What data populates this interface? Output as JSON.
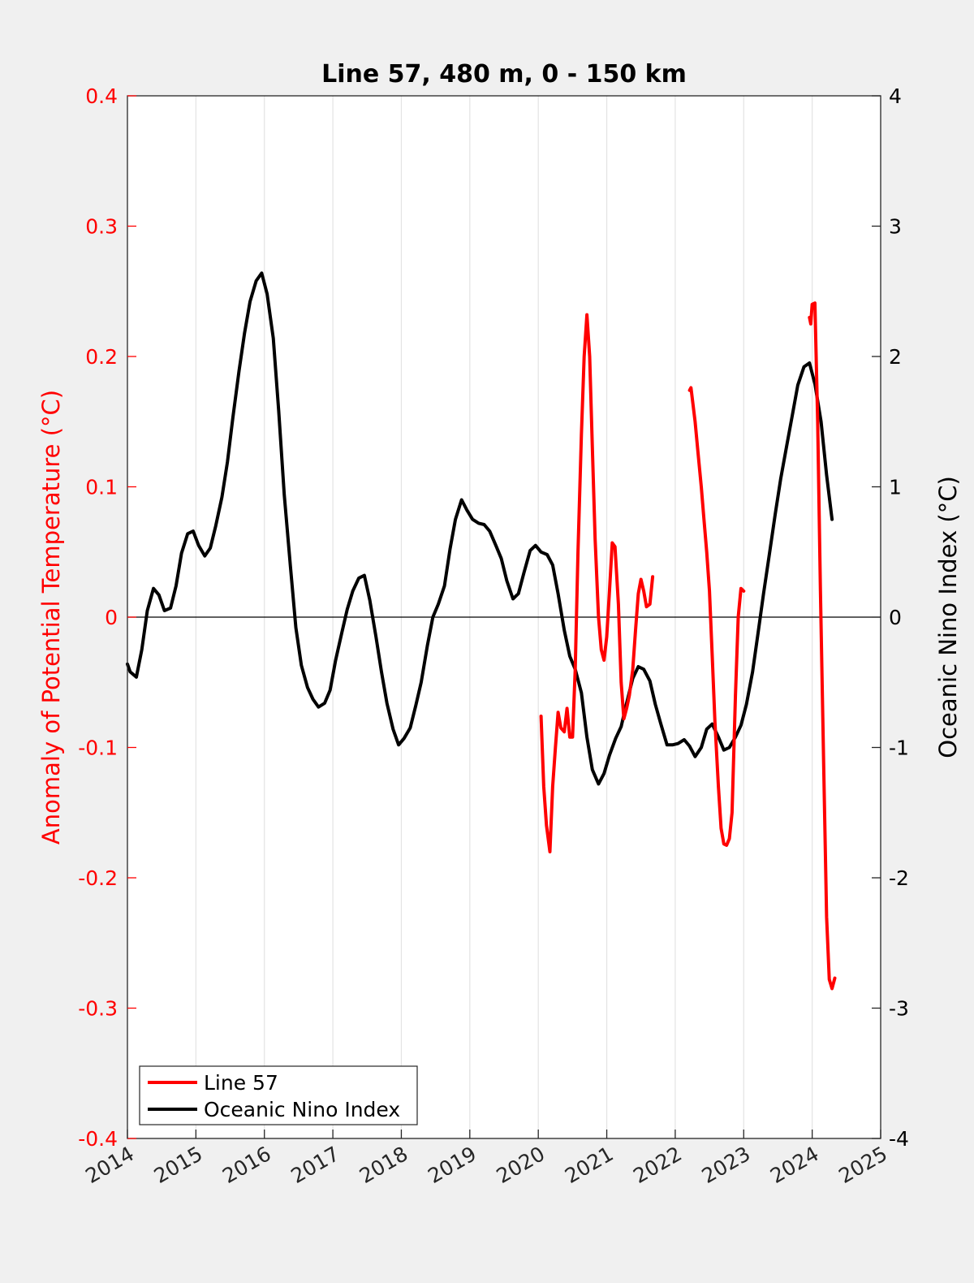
{
  "chart_data": {
    "type": "line",
    "title": "Line 57, 480 m, 0 - 150 km",
    "xlim": [
      2014,
      2025
    ],
    "x_ticks": [
      "2014",
      "2015",
      "2016",
      "2017",
      "2018",
      "2019",
      "2020",
      "2021",
      "2022",
      "2023",
      "2024",
      "2025"
    ],
    "y_left": {
      "label": "Anomaly of Potential Temperature (°C)",
      "lim": [
        -0.4,
        0.4
      ],
      "ticks": [
        "-0.4",
        "-0.3",
        "-0.2",
        "-0.1",
        "0",
        "0.1",
        "0.2",
        "0.3",
        "0.4"
      ],
      "color": "#ff0000"
    },
    "y_right": {
      "label": "Oceanic Nino Index (°C)",
      "lim": [
        -4,
        4
      ],
      "ticks": [
        "-4",
        "-3",
        "-2",
        "-1",
        "0",
        "1",
        "2",
        "3",
        "4"
      ],
      "color": "#000000"
    },
    "grid": "vertical",
    "legend_position": "bottom-left",
    "series": [
      {
        "name": "Line 57",
        "axis": "left",
        "color": "#ff0000",
        "segments": [
          [
            [
              2020.04,
              -0.076
            ],
            [
              2020.08,
              -0.13
            ],
            [
              2020.12,
              -0.16
            ],
            [
              2020.17,
              -0.18
            ],
            [
              2020.21,
              -0.13
            ],
            [
              2020.25,
              -0.1
            ],
            [
              2020.29,
              -0.073
            ],
            [
              2020.33,
              -0.085
            ],
            [
              2020.38,
              -0.088
            ],
            [
              2020.42,
              -0.07
            ],
            [
              2020.46,
              -0.092
            ],
            [
              2020.5,
              -0.092
            ],
            [
              2020.54,
              -0.04
            ],
            [
              2020.58,
              0.05
            ],
            [
              2020.63,
              0.14
            ],
            [
              2020.67,
              0.2
            ],
            [
              2020.71,
              0.232
            ],
            [
              2020.75,
              0.2
            ],
            [
              2020.79,
              0.13
            ],
            [
              2020.83,
              0.06
            ],
            [
              2020.88,
              0.0
            ],
            [
              2020.92,
              -0.025
            ],
            [
              2020.96,
              -0.033
            ],
            [
              2021.0,
              -0.015
            ],
            [
              2021.04,
              0.02
            ],
            [
              2021.08,
              0.057
            ],
            [
              2021.12,
              0.054
            ],
            [
              2021.17,
              0.01
            ],
            [
              2021.21,
              -0.05
            ],
            [
              2021.25,
              -0.078
            ],
            [
              2021.29,
              -0.07
            ],
            [
              2021.33,
              -0.06
            ],
            [
              2021.38,
              -0.04
            ],
            [
              2021.42,
              -0.01
            ],
            [
              2021.46,
              0.018
            ],
            [
              2021.5,
              0.029
            ],
            [
              2021.54,
              0.02
            ],
            [
              2021.58,
              0.008
            ],
            [
              2021.63,
              0.01
            ],
            [
              2021.67,
              0.031
            ]
          ],
          [
            [
              2022.21,
              0.174
            ],
            [
              2022.23,
              0.176
            ],
            [
              2022.29,
              0.15
            ],
            [
              2022.33,
              0.128
            ],
            [
              2022.38,
              0.1
            ],
            [
              2022.42,
              0.075
            ],
            [
              2022.46,
              0.05
            ],
            [
              2022.5,
              0.02
            ],
            [
              2022.54,
              -0.03
            ],
            [
              2022.58,
              -0.08
            ],
            [
              2022.63,
              -0.13
            ],
            [
              2022.67,
              -0.162
            ],
            [
              2022.71,
              -0.174
            ],
            [
              2022.75,
              -0.175
            ],
            [
              2022.79,
              -0.17
            ],
            [
              2022.83,
              -0.15
            ],
            [
              2022.88,
              -0.06
            ],
            [
              2022.92,
              0.0
            ],
            [
              2022.96,
              0.022
            ],
            [
              2023.0,
              0.02
            ]
          ],
          [
            [
              2023.96,
              0.23
            ],
            [
              2023.98,
              0.225
            ],
            [
              2024.0,
              0.24
            ],
            [
              2024.04,
              0.241
            ],
            [
              2024.08,
              0.15
            ],
            [
              2024.12,
              0.02
            ],
            [
              2024.17,
              -0.12
            ],
            [
              2024.21,
              -0.23
            ],
            [
              2024.25,
              -0.278
            ],
            [
              2024.29,
              -0.285
            ],
            [
              2024.33,
              -0.277
            ]
          ]
        ]
      },
      {
        "name": "Oceanic Nino Index",
        "axis": "right",
        "color": "#000000",
        "segments": [
          [
            [
              2014.0,
              -0.36
            ],
            [
              2014.04,
              -0.42
            ],
            [
              2014.13,
              -0.46
            ],
            [
              2014.21,
              -0.25
            ],
            [
              2014.29,
              0.05
            ],
            [
              2014.38,
              0.22
            ],
            [
              2014.46,
              0.17
            ],
            [
              2014.54,
              0.05
            ],
            [
              2014.63,
              0.07
            ],
            [
              2014.71,
              0.24
            ],
            [
              2014.79,
              0.49
            ],
            [
              2014.88,
              0.64
            ],
            [
              2014.96,
              0.66
            ],
            [
              2015.04,
              0.55
            ],
            [
              2015.13,
              0.47
            ],
            [
              2015.21,
              0.53
            ],
            [
              2015.29,
              0.7
            ],
            [
              2015.38,
              0.92
            ],
            [
              2015.46,
              1.19
            ],
            [
              2015.54,
              1.53
            ],
            [
              2015.63,
              1.89
            ],
            [
              2015.71,
              2.18
            ],
            [
              2015.79,
              2.42
            ],
            [
              2015.88,
              2.58
            ],
            [
              2015.96,
              2.64
            ],
            [
              2016.04,
              2.48
            ],
            [
              2016.13,
              2.14
            ],
            [
              2016.21,
              1.58
            ],
            [
              2016.29,
              0.94
            ],
            [
              2016.38,
              0.39
            ],
            [
              2016.46,
              -0.08
            ],
            [
              2016.54,
              -0.37
            ],
            [
              2016.63,
              -0.54
            ],
            [
              2016.71,
              -0.63
            ],
            [
              2016.79,
              -0.69
            ],
            [
              2016.88,
              -0.66
            ],
            [
              2016.96,
              -0.56
            ],
            [
              2017.04,
              -0.33
            ],
            [
              2017.13,
              -0.12
            ],
            [
              2017.21,
              0.06
            ],
            [
              2017.29,
              0.2
            ],
            [
              2017.38,
              0.3
            ],
            [
              2017.46,
              0.32
            ],
            [
              2017.54,
              0.13
            ],
            [
              2017.63,
              -0.15
            ],
            [
              2017.71,
              -0.42
            ],
            [
              2017.79,
              -0.66
            ],
            [
              2017.88,
              -0.86
            ],
            [
              2017.96,
              -0.98
            ],
            [
              2018.04,
              -0.93
            ],
            [
              2018.13,
              -0.85
            ],
            [
              2018.21,
              -0.68
            ],
            [
              2018.29,
              -0.5
            ],
            [
              2018.38,
              -0.22
            ],
            [
              2018.46,
              0.0
            ],
            [
              2018.54,
              0.1
            ],
            [
              2018.63,
              0.24
            ],
            [
              2018.71,
              0.52
            ],
            [
              2018.79,
              0.75
            ],
            [
              2018.88,
              0.9
            ],
            [
              2018.96,
              0.82
            ],
            [
              2019.04,
              0.75
            ],
            [
              2019.13,
              0.72
            ],
            [
              2019.21,
              0.71
            ],
            [
              2019.29,
              0.66
            ],
            [
              2019.38,
              0.55
            ],
            [
              2019.46,
              0.45
            ],
            [
              2019.54,
              0.28
            ],
            [
              2019.63,
              0.14
            ],
            [
              2019.71,
              0.18
            ],
            [
              2019.79,
              0.34
            ],
            [
              2019.88,
              0.51
            ],
            [
              2019.96,
              0.55
            ],
            [
              2020.04,
              0.5
            ],
            [
              2020.13,
              0.48
            ],
            [
              2020.21,
              0.4
            ],
            [
              2020.29,
              0.18
            ],
            [
              2020.38,
              -0.1
            ],
            [
              2020.46,
              -0.3
            ],
            [
              2020.54,
              -0.4
            ],
            [
              2020.63,
              -0.58
            ],
            [
              2020.71,
              -0.92
            ],
            [
              2020.79,
              -1.17
            ],
            [
              2020.88,
              -1.28
            ],
            [
              2020.96,
              -1.2
            ],
            [
              2021.04,
              -1.06
            ],
            [
              2021.13,
              -0.93
            ],
            [
              2021.21,
              -0.84
            ],
            [
              2021.29,
              -0.66
            ],
            [
              2021.38,
              -0.47
            ],
            [
              2021.46,
              -0.38
            ],
            [
              2021.54,
              -0.4
            ],
            [
              2021.63,
              -0.49
            ],
            [
              2021.71,
              -0.67
            ],
            [
              2021.79,
              -0.82
            ],
            [
              2021.88,
              -0.98
            ],
            [
              2021.96,
              -0.98
            ],
            [
              2022.04,
              -0.97
            ],
            [
              2022.13,
              -0.94
            ],
            [
              2022.21,
              -0.99
            ],
            [
              2022.29,
              -1.07
            ],
            [
              2022.38,
              -1.0
            ],
            [
              2022.46,
              -0.86
            ],
            [
              2022.54,
              -0.82
            ],
            [
              2022.63,
              -0.92
            ],
            [
              2022.71,
              -1.02
            ],
            [
              2022.79,
              -1.0
            ],
            [
              2022.88,
              -0.92
            ],
            [
              2022.96,
              -0.83
            ],
            [
              2023.04,
              -0.67
            ],
            [
              2023.13,
              -0.42
            ],
            [
              2023.21,
              -0.12
            ],
            [
              2023.29,
              0.18
            ],
            [
              2023.38,
              0.5
            ],
            [
              2023.46,
              0.79
            ],
            [
              2023.54,
              1.06
            ],
            [
              2023.63,
              1.32
            ],
            [
              2023.71,
              1.55
            ],
            [
              2023.79,
              1.78
            ],
            [
              2023.88,
              1.92
            ],
            [
              2023.96,
              1.95
            ],
            [
              2024.04,
              1.79
            ],
            [
              2024.13,
              1.5
            ],
            [
              2024.21,
              1.09
            ],
            [
              2024.29,
              0.75
            ]
          ]
        ]
      }
    ]
  }
}
